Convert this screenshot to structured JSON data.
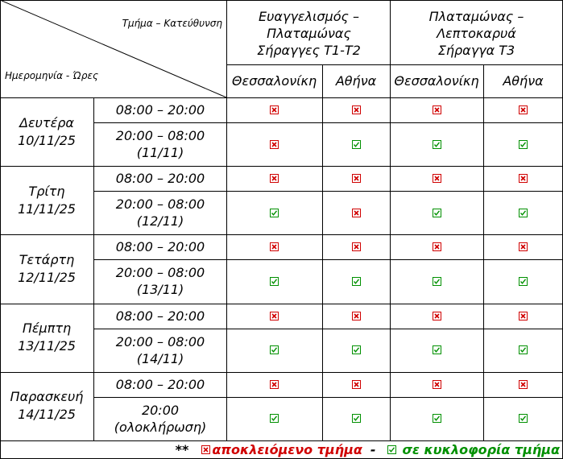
{
  "corner": {
    "top_label": "Τμήμα – Κατεύθυνση",
    "bottom_label": "Ημερομηνία - Ώρες"
  },
  "sections": [
    {
      "title_lines": [
        "Ευαγγελισμός –",
        "Πλαταμώνας",
        "Σήραγγες Τ1-Τ2"
      ]
    },
    {
      "title_lines": [
        "Πλαταμώνας –",
        "Λεπτοκαρυά",
        "Σήραγγα Τ3"
      ]
    }
  ],
  "directions": [
    "Θεσσαλονίκη",
    "Αθήνα",
    "Θεσσαλονίκη",
    "Αθήνα"
  ],
  "days": [
    {
      "name": "Δευτέρα",
      "date": "10/11/25",
      "slots": [
        {
          "line1": "08:00 – 20:00",
          "line2": "",
          "status": [
            "closed",
            "closed",
            "closed",
            "closed"
          ]
        },
        {
          "line1": "20:00 – 08:00",
          "line2": "(11/11)",
          "status": [
            "closed",
            "open",
            "open",
            "open"
          ]
        }
      ]
    },
    {
      "name": "Τρίτη",
      "date": "11/11/25",
      "slots": [
        {
          "line1": "08:00 – 20:00",
          "line2": "",
          "status": [
            "closed",
            "closed",
            "closed",
            "closed"
          ]
        },
        {
          "line1": "20:00 – 08:00",
          "line2": "(12/11)",
          "status": [
            "open",
            "closed",
            "open",
            "open"
          ]
        }
      ]
    },
    {
      "name": "Τετάρτη",
      "date": "12/11/25",
      "slots": [
        {
          "line1": "08:00 – 20:00",
          "line2": "",
          "status": [
            "closed",
            "closed",
            "closed",
            "closed"
          ]
        },
        {
          "line1": "20:00 – 08:00",
          "line2": "(13/11)",
          "status": [
            "open",
            "open",
            "open",
            "open"
          ]
        }
      ]
    },
    {
      "name": "Πέμπτη",
      "date": "13/11/25",
      "slots": [
        {
          "line1": "08:00 – 20:00",
          "line2": "",
          "status": [
            "closed",
            "closed",
            "closed",
            "closed"
          ]
        },
        {
          "line1": "20:00 – 08:00",
          "line2": "(14/11)",
          "status": [
            "open",
            "open",
            "open",
            "open"
          ]
        }
      ]
    },
    {
      "name": "Παρασκευή",
      "date": "14/11/25",
      "slots": [
        {
          "line1": "08:00 – 20:00",
          "line2": "",
          "status": [
            "closed",
            "closed",
            "closed",
            "closed"
          ]
        },
        {
          "line1": "20:00",
          "line2": "(ολοκλήρωση)",
          "status": [
            "open",
            "open",
            "open",
            "open"
          ]
        }
      ]
    }
  ],
  "legend": {
    "prefix": "**",
    "closed_label": "αποκλειόμενο τμήμα",
    "separator": "-",
    "open_label": "σε κυκλοφορία τμήμα"
  },
  "icons": {
    "closed": "red-cross-box-icon",
    "open": "green-check-box-icon"
  },
  "colors": {
    "closed": "#d00000",
    "open": "#009000",
    "line": "#000000"
  }
}
